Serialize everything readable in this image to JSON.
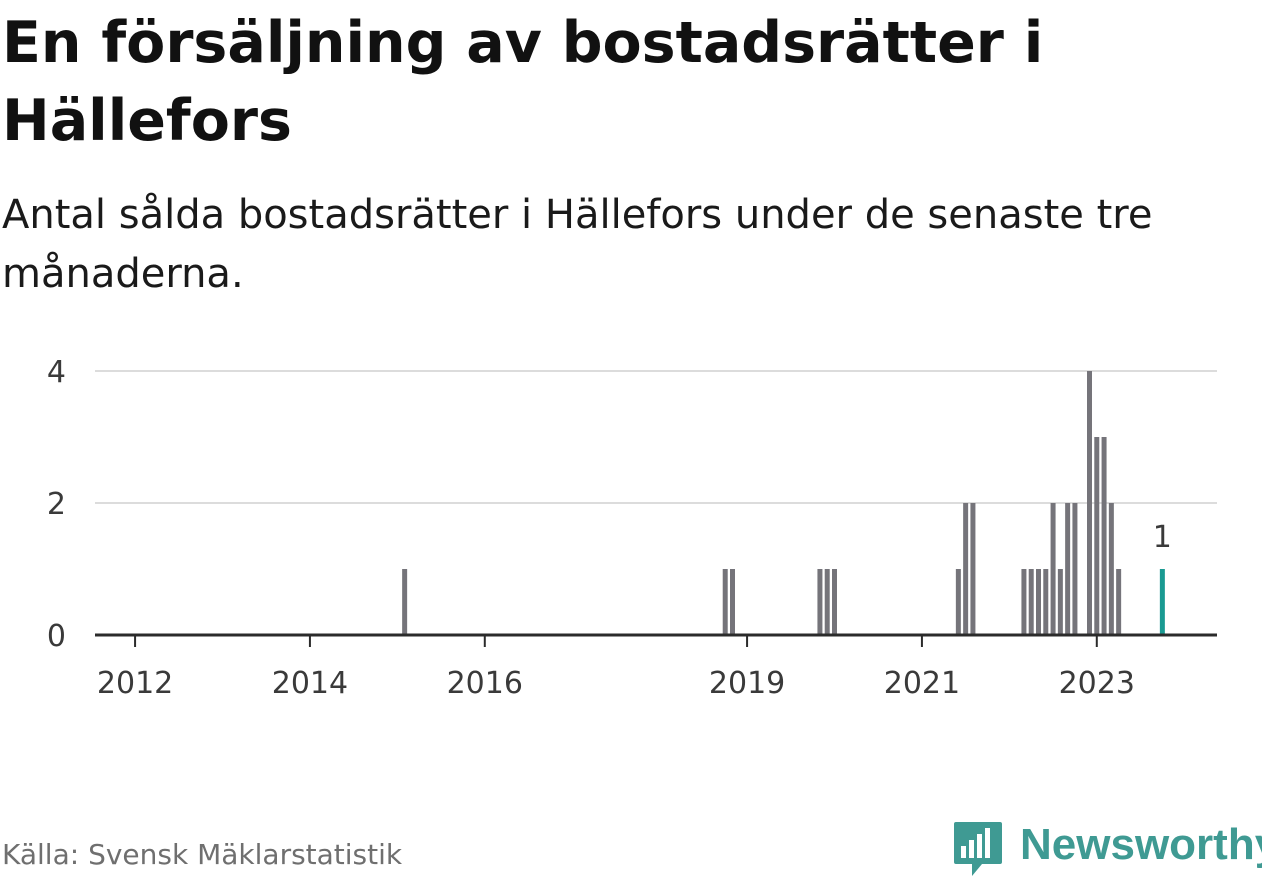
{
  "title": "En försäljning av bostadsrätter i Hällefors",
  "subtitle": "Antal sålda bostadsrätter i Hällefors under de senaste tre månaderna.",
  "source": "Källa: Svensk Mäklarstatistik",
  "brand": {
    "name": "Newsworthy",
    "icon": "bar-chart-speech-bubble-icon",
    "color": "#3f9a93"
  },
  "colors": {
    "bar": "#75747a",
    "highlight": "#1a9a92",
    "grid": "#dcdcdc",
    "axis": "#2b2b2b"
  },
  "chart_data": {
    "type": "bar",
    "title": "",
    "xlabel": "",
    "ylabel": "",
    "ylim": [
      0,
      4
    ],
    "grid": true,
    "legend": "none",
    "yticks": [
      0,
      2,
      4
    ],
    "xticks": [
      "2012",
      "2014",
      "2016",
      "2019",
      "2021",
      "2023"
    ],
    "x_range": [
      "2011-08",
      "2024-06"
    ],
    "bars": [
      {
        "month": "2015-02",
        "value": 1
      },
      {
        "month": "2018-10",
        "value": 1
      },
      {
        "month": "2018-11",
        "value": 1
      },
      {
        "month": "2019-11",
        "value": 1
      },
      {
        "month": "2019-12",
        "value": 1
      },
      {
        "month": "2020-01",
        "value": 1
      },
      {
        "month": "2021-06",
        "value": 1
      },
      {
        "month": "2021-07",
        "value": 2
      },
      {
        "month": "2021-08",
        "value": 2
      },
      {
        "month": "2022-03",
        "value": 1
      },
      {
        "month": "2022-04",
        "value": 1
      },
      {
        "month": "2022-05",
        "value": 1
      },
      {
        "month": "2022-06",
        "value": 1
      },
      {
        "month": "2022-07",
        "value": 2
      },
      {
        "month": "2022-08",
        "value": 1
      },
      {
        "month": "2022-09",
        "value": 2
      },
      {
        "month": "2022-10",
        "value": 2
      },
      {
        "month": "2022-12",
        "value": 4
      },
      {
        "month": "2023-01",
        "value": 3
      },
      {
        "month": "2023-02",
        "value": 3
      },
      {
        "month": "2023-03",
        "value": 2
      },
      {
        "month": "2023-04",
        "value": 1
      },
      {
        "month": "2023-10",
        "value": 1,
        "highlight": true,
        "label": "1"
      }
    ]
  }
}
